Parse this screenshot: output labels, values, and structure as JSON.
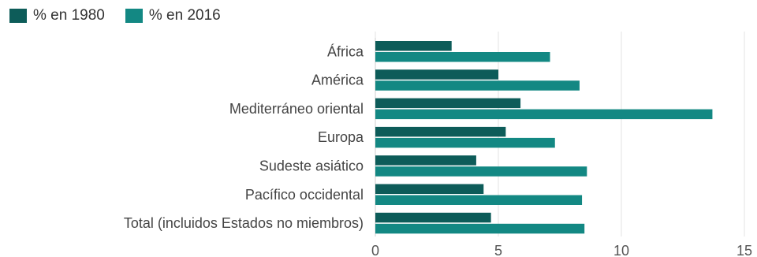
{
  "chart_data": {
    "type": "bar",
    "orientation": "horizontal",
    "categories": [
      "África",
      "América",
      "Mediterráneo oriental",
      "Europa",
      "Sudeste asiático",
      "Pacífico occidental",
      "Total (incluidos Estados no miembros)"
    ],
    "series": [
      {
        "name": "% en 1980",
        "color": "#0d5c59",
        "values": [
          3.1,
          5.0,
          5.9,
          5.3,
          4.1,
          4.4,
          4.7
        ]
      },
      {
        "name": "% en 2016",
        "color": "#138883",
        "values": [
          7.1,
          8.3,
          13.7,
          7.3,
          8.6,
          8.4,
          8.5
        ]
      }
    ],
    "xlim": [
      0,
      15
    ],
    "xticks": [
      "0",
      "5",
      "10",
      "15"
    ],
    "grid": true,
    "legend_position": "top-left"
  }
}
